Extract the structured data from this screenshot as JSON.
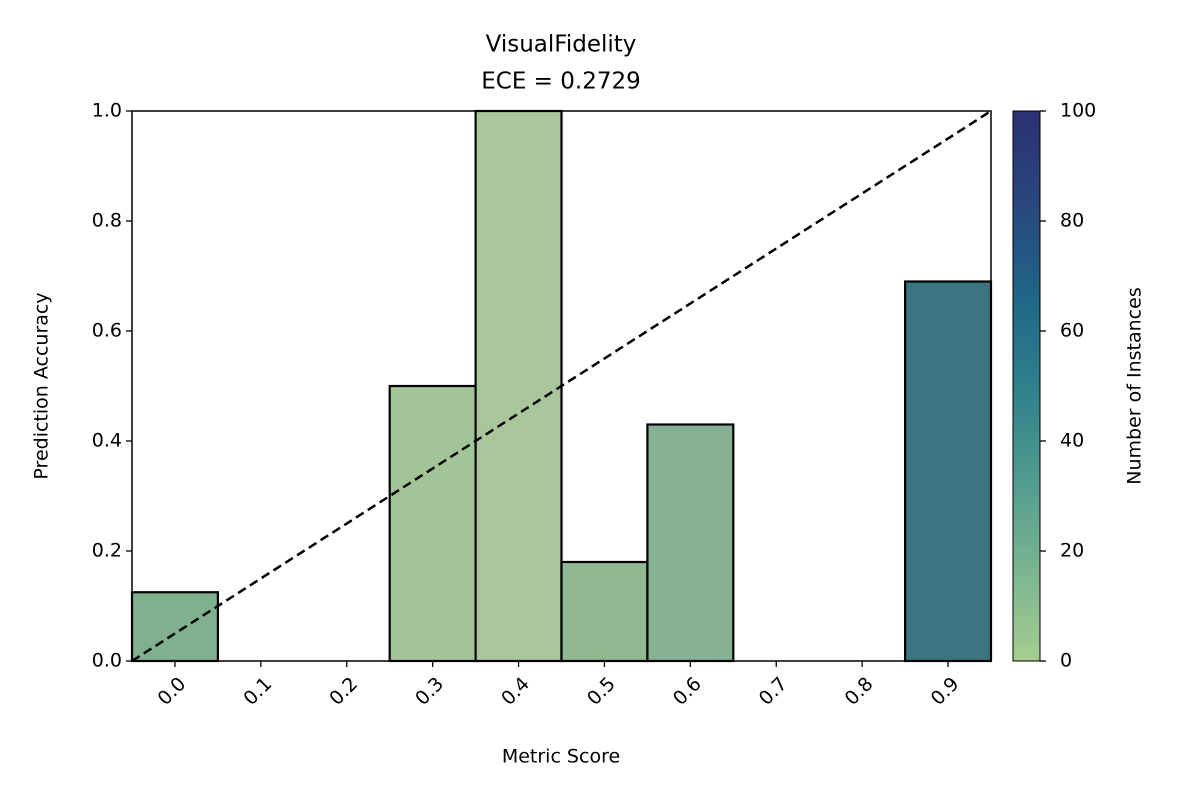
{
  "chart_data": {
    "type": "histogram",
    "title": "VisualFidelity",
    "subtitle": "ECE = 0.2729",
    "xlabel": "Metric Score",
    "ylabel": "Prediction Accuracy",
    "bins": [
      -0.05,
      0.05,
      0.15,
      0.25,
      0.35,
      0.45,
      0.55,
      0.65,
      0.75,
      0.85,
      0.95
    ],
    "values": [
      0.125,
      null,
      null,
      0.5,
      1.0,
      0.18,
      0.43,
      null,
      null,
      0.69
    ],
    "colors": [
      "#7fb08f",
      null,
      null,
      "#a3c497",
      "#a8c69a",
      "#8fb893",
      "#86b192",
      null,
      null,
      "#3b7680"
    ],
    "xlim": [
      -0.05,
      0.95
    ],
    "ylim": [
      0,
      1
    ],
    "xticks": [
      {
        "value": 0,
        "label": "0.0"
      },
      0.1,
      0.2,
      0.3,
      0.4,
      0.5,
      0.6,
      0.7,
      0.8,
      0.9
    ],
    "yticks": [
      {
        "value": 0,
        "label": "0.0"
      },
      0.2,
      0.4,
      0.6,
      0.8,
      {
        "value": 1,
        "label": "1.0"
      }
    ],
    "diagonal": {
      "x": [
        -0.05,
        0.95
      ],
      "y": [
        0,
        1
      ]
    },
    "colorbar": {
      "label": "Number of Instances",
      "lim": [
        0,
        100
      ],
      "ticks": [
        0,
        20,
        40,
        60,
        80,
        100
      ],
      "colors": [
        "#a5cd90",
        "#7ab591",
        "#4f9b8f",
        "#2e808c",
        "#1f6587",
        "#29477e",
        "#2c3172"
      ]
    }
  }
}
